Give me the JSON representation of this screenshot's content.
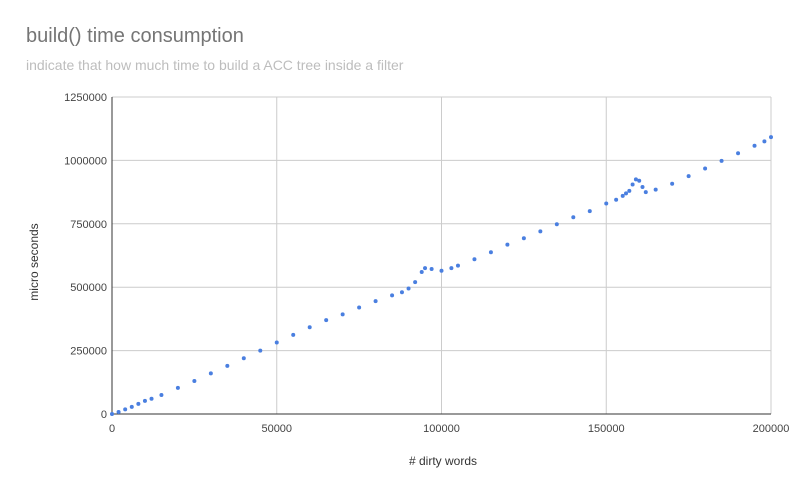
{
  "chart_data": {
    "type": "scatter",
    "title": "build() time consumption",
    "subtitle": "indicate that how much time to build a ACC tree inside a filter",
    "xlabel": "# dirty words",
    "ylabel": "micro seconds",
    "xlim": [
      0,
      200000
    ],
    "ylim": [
      0,
      1250000
    ],
    "x_ticks": [
      0,
      50000,
      100000,
      150000,
      200000
    ],
    "y_ticks": [
      0,
      250000,
      500000,
      750000,
      1000000,
      1250000
    ],
    "x_tick_labels": [
      "0",
      "50000",
      "100000",
      "150000",
      "200000"
    ],
    "y_tick_labels": [
      "0",
      "250000",
      "500000",
      "750000",
      "1000000",
      "1250000"
    ],
    "grid": true,
    "legend": "none",
    "point_color": "#4a7fe0",
    "series": [
      {
        "x": [
          0,
          2000,
          4000,
          6000,
          8000,
          10000,
          12000,
          15000,
          20000,
          25000,
          30000,
          35000,
          40000,
          45000,
          50000,
          55000,
          60000,
          65000,
          70000,
          75000,
          80000,
          85000,
          88000,
          90000,
          92000,
          94000,
          95000,
          97000,
          100000,
          103000,
          105000,
          110000,
          115000,
          120000,
          125000,
          130000,
          135000,
          140000,
          145000,
          150000,
          153000,
          155000,
          156000,
          157000,
          158000,
          159000,
          160000,
          161000,
          162000,
          165000,
          170000,
          175000,
          180000,
          185000,
          190000,
          195000,
          198000,
          200000
        ],
        "y": [
          0,
          8000,
          18000,
          28000,
          40000,
          52000,
          60000,
          75000,
          103000,
          130000,
          160000,
          190000,
          220000,
          250000,
          282000,
          312000,
          342000,
          370000,
          393000,
          420000,
          445000,
          468000,
          480000,
          495000,
          520000,
          560000,
          575000,
          572000,
          565000,
          575000,
          585000,
          610000,
          638000,
          668000,
          693000,
          720000,
          748000,
          776000,
          800000,
          830000,
          845000,
          860000,
          870000,
          880000,
          905000,
          925000,
          920000,
          895000,
          875000,
          885000,
          908000,
          938000,
          968000,
          998000,
          1028000,
          1058000,
          1075000,
          1092000
        ]
      }
    ]
  }
}
